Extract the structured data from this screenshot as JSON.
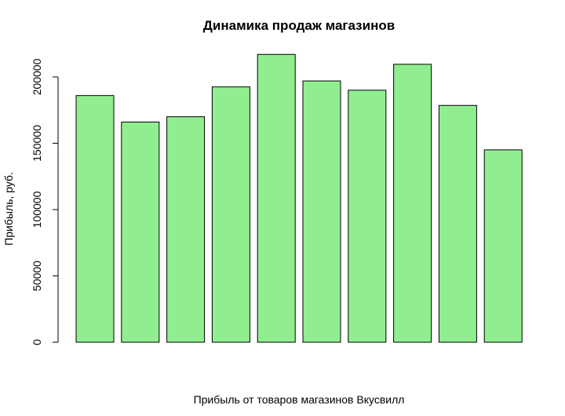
{
  "chart_data": {
    "type": "bar",
    "title": "Динамика продаж магазинов",
    "xlabel": "Прибыль от товаров магазинов Вкусвилл",
    "ylabel": "Прибыль, руб.",
    "values": [
      186000,
      166000,
      170000,
      192500,
      217000,
      197000,
      190000,
      209500,
      178500,
      145000
    ],
    "ylim": [
      0,
      200000
    ],
    "yticks": [
      0,
      50000,
      100000,
      150000,
      200000
    ],
    "ytick_labels": [
      "0",
      "50000",
      "100000",
      "150000",
      "200000"
    ],
    "bar_color": "#90EE90",
    "grid": false,
    "legend": "none"
  }
}
